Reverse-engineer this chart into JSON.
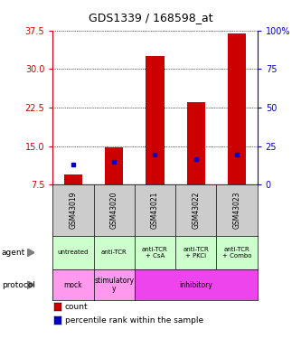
{
  "title": "GDS1339 / 168598_at",
  "samples": [
    "GSM43019",
    "GSM43020",
    "GSM43021",
    "GSM43022",
    "GSM43023"
  ],
  "count_values": [
    9.5,
    14.8,
    32.5,
    23.5,
    37.0
  ],
  "percentile_values": [
    13.0,
    15.0,
    19.5,
    16.8,
    19.5
  ],
  "ylim_left": [
    7.5,
    37.5
  ],
  "yticks_left": [
    7.5,
    15.0,
    22.5,
    30.0,
    37.5
  ],
  "yticks_right": [
    0,
    25,
    50,
    75,
    100
  ],
  "ylim_right": [
    0,
    100
  ],
  "bar_color": "#cc0000",
  "dot_color": "#0000cc",
  "bar_bottom": 7.5,
  "agent_labels": [
    "untreated",
    "anti-TCR",
    "anti-TCR\n+ CsA",
    "anti-TCR\n+ PKCi",
    "anti-TCR\n+ Combo"
  ],
  "agent_bg": "#ccffcc",
  "protocol_mock_bg": "#ff99ee",
  "protocol_stim_bg": "#ff99ee",
  "protocol_inhib_bg": "#ee44ee",
  "sample_bg": "#cccccc",
  "left_axis_color": "#cc0000",
  "right_axis_color": "#0000cc",
  "legend_count_color": "#cc0000",
  "legend_pct_color": "#0000cc",
  "protocol_entries": [
    {
      "label": "mock",
      "span": 1,
      "bg": "#ff99ee"
    },
    {
      "label": "stimulatory\ny",
      "span": 1,
      "bg": "#ff99ee"
    },
    {
      "label": "inhibitory",
      "span": 3,
      "bg": "#ee44ee"
    }
  ]
}
